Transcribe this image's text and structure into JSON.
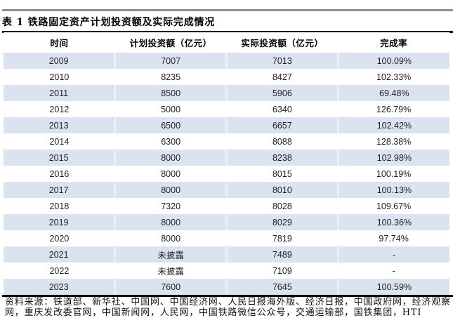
{
  "title": "表 1 铁路固定资产计划投资额及实际完成情况",
  "table": {
    "columns": [
      "时间",
      "计划投资额（亿元）",
      "实际投资额（亿元）",
      "完成率"
    ],
    "rows": [
      [
        "2009",
        "7007",
        "7013",
        "100.09%"
      ],
      [
        "2010",
        "8235",
        "8427",
        "102.33%"
      ],
      [
        "2011",
        "8500",
        "5906",
        "69.48%"
      ],
      [
        "2012",
        "5000",
        "6340",
        "126.79%"
      ],
      [
        "2013",
        "6500",
        "6657",
        "102.42%"
      ],
      [
        "2014",
        "6300",
        "8088",
        "128.38%"
      ],
      [
        "2015",
        "8000",
        "8238",
        "102.98%"
      ],
      [
        "2016",
        "8000",
        "8015",
        "100.19%"
      ],
      [
        "2017",
        "8000",
        "8010",
        "100.13%"
      ],
      [
        "2018",
        "7320",
        "8028",
        "109.67%"
      ],
      [
        "2019",
        "8000",
        "8029",
        "100.36%"
      ],
      [
        "2020",
        "8000",
        "7819",
        "97.74%"
      ],
      [
        "2021",
        "未披露",
        "7489",
        "-"
      ],
      [
        "2022",
        "未披露",
        "7109",
        "-"
      ],
      [
        "2023",
        "7600",
        "7645",
        "100.59%"
      ]
    ]
  },
  "source_note": "资料来源：铁道部、新华社、中国网、中国经济网、人民日报海外版、经济日报，中国政府网，经济观察网，重庆发改委官网，中国新闻网，人民网，中国铁路微信公众号，交通运输部，国铁集团，HTI",
  "colors": {
    "stripe": "#dce3f0",
    "top_rule": "#8f8f8f",
    "heavy_rule": "#000000"
  }
}
